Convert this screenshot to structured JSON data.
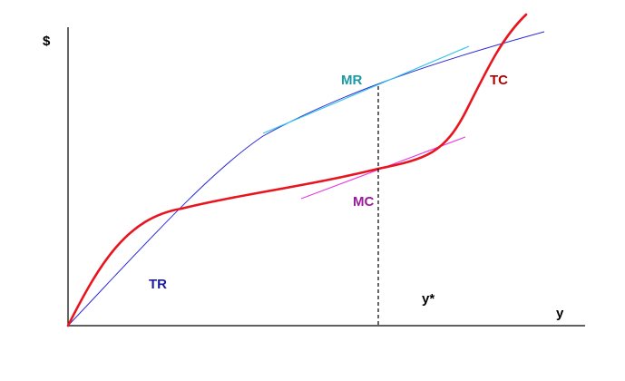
{
  "labels": {
    "y_axis": "$",
    "x_axis": "y",
    "tr": "TR",
    "tc": "TC",
    "mr": "MR",
    "mc": "MC",
    "y_star": "y*"
  },
  "colors": {
    "axis": "#000000",
    "tr_curve": "#2b2bd6",
    "tc_curve": "#e8141e",
    "mr_tangent": "#33c6e8",
    "mc_tangent": "#e83ee0",
    "tr_label": "#1c1c9c",
    "tc_label": "#b00000",
    "mr_label": "#1a9aa6",
    "mc_label": "#9a1a9a",
    "guide": "#000000"
  }
}
